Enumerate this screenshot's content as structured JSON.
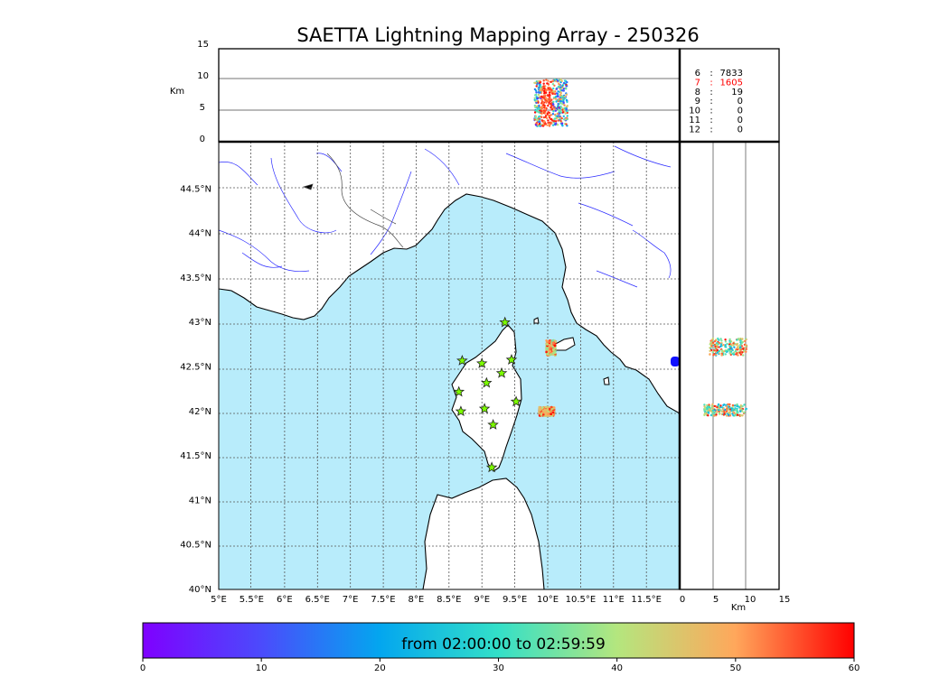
{
  "title": "SAETTA Lightning Mapping Array - 250326",
  "colors": {
    "sea": "#b8ecfb",
    "land": "#ffffff",
    "river": "#2b2bff",
    "border": "#444444",
    "coast": "#000000",
    "station_fill": "#7cfc00",
    "count_highlight": "#ff0000"
  },
  "icons": {
    "station": "star-icon"
  },
  "counts": {
    "rows": [
      {
        "stations": "6",
        "count": "7833",
        "highlight": false
      },
      {
        "stations": "7",
        "count": "1605",
        "highlight": true
      },
      {
        "stations": "8",
        "count": "19",
        "highlight": false
      },
      {
        "stations": "9",
        "count": "0",
        "highlight": false
      },
      {
        "stations": "10",
        "count": "0",
        "highlight": false
      },
      {
        "stations": "11",
        "count": "0",
        "highlight": false
      },
      {
        "stations": "12",
        "count": "0",
        "highlight": false
      }
    ]
  },
  "colorbar": {
    "label": "from 02:00:00 to 02:59:59",
    "ticks": [
      "0",
      "10",
      "20",
      "30",
      "40",
      "50",
      "60"
    ],
    "range": [
      0,
      60
    ]
  },
  "chart_data": [
    {
      "type": "scatter",
      "panel": "plan-view",
      "xlabel": "",
      "ylabel": "",
      "xlim": [
        5,
        12
      ],
      "ylim": [
        40,
        45
      ],
      "x_tick_labels": [
        "5°E",
        "5.5°E",
        "6°E",
        "6.5°E",
        "7°E",
        "7.5°E",
        "8°E",
        "8.5°E",
        "9°E",
        "9.5°E",
        "10°E",
        "10.5°E",
        "11°E",
        "11.5°E"
      ],
      "y_tick_labels": [
        "40°N",
        "40.5°N",
        "41°N",
        "41.5°N",
        "42°N",
        "42.5°N",
        "43°N",
        "43.5°N",
        "44°N",
        "44.5°N"
      ],
      "grid": true,
      "stations": [
        {
          "lon": 9.35,
          "lat": 43.0
        },
        {
          "lon": 8.7,
          "lat": 42.57
        },
        {
          "lon": 9.0,
          "lat": 42.54
        },
        {
          "lon": 9.45,
          "lat": 42.58
        },
        {
          "lon": 9.3,
          "lat": 42.43
        },
        {
          "lon": 9.07,
          "lat": 42.32
        },
        {
          "lon": 8.65,
          "lat": 42.22
        },
        {
          "lon": 9.52,
          "lat": 42.11
        },
        {
          "lon": 8.68,
          "lat": 42.0
        },
        {
          "lon": 9.04,
          "lat": 42.03
        },
        {
          "lon": 9.17,
          "lat": 41.85
        },
        {
          "lon": 9.15,
          "lat": 41.37
        }
      ],
      "clusters": [
        {
          "name": "north",
          "lon": [
            9.95,
            10.15
          ],
          "lat": [
            42.63,
            42.8
          ],
          "time_min": [
            35,
            60
          ]
        },
        {
          "name": "south",
          "lon": [
            9.82,
            10.15
          ],
          "lat": [
            41.95,
            42.05
          ],
          "time_min": [
            40,
            60
          ]
        }
      ]
    },
    {
      "type": "scatter",
      "panel": "altitude-vs-longitude",
      "ylabel": "Km",
      "ylim": [
        0,
        15
      ],
      "y_tick_labels": [
        "0",
        "5",
        "10",
        "15"
      ],
      "cluster": {
        "lon": [
          9.8,
          10.3
        ],
        "alt_km": [
          2.5,
          10
        ],
        "time_min": [
          0,
          60
        ]
      }
    },
    {
      "type": "scatter",
      "panel": "latitude-vs-altitude",
      "xlabel": "Km",
      "xlim": [
        0,
        15
      ],
      "x_tick_labels": [
        "0",
        "5",
        "10",
        "15"
      ],
      "clusters": [
        {
          "alt_km": [
            3,
            10
          ],
          "lat": [
            42.63,
            42.82
          ],
          "time_min": [
            20,
            60
          ]
        },
        {
          "alt_km": [
            2,
            10
          ],
          "lat": [
            41.95,
            42.08
          ],
          "time_min": [
            20,
            60
          ]
        }
      ]
    }
  ]
}
